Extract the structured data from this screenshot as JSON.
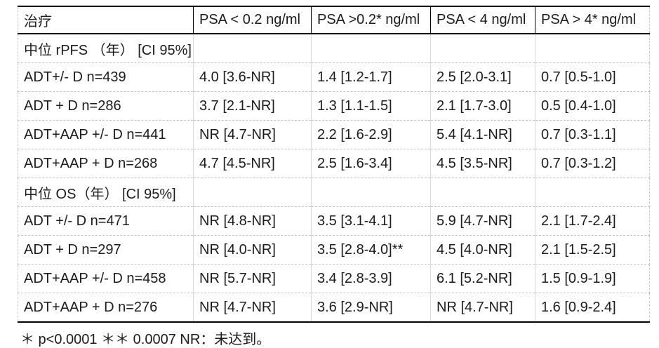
{
  "table": {
    "columns": [
      "治疗",
      "PSA < 0.2 ng/ml",
      "PSA >0.2* ng/ml",
      "PSA < 4 ng/ml",
      "PSA > 4* ng/ml"
    ],
    "rows": [
      {
        "type": "section",
        "label": "中位 rPFS （年） [CI 95%]",
        "cells": [
          "",
          "",
          "",
          ""
        ]
      },
      {
        "type": "data",
        "label": "ADT+/- D n=439",
        "cells": [
          "4.0 [3.6-NR]",
          "1.4 [1.2-1.7]",
          "2.5 [2.0-3.1]",
          "0.7 [0.5-1.0]"
        ]
      },
      {
        "type": "data",
        "label": "ADT + D n=286",
        "cells": [
          "3.7 [2.1-NR]",
          "1.3 [1.1-1.5]",
          "2.1 [1.7-3.0]",
          "0.5 [0.4-1.0]"
        ]
      },
      {
        "type": "data",
        "label": "ADT+AAP +/- D n=441",
        "cells": [
          "NR [4.7-NR]",
          "2.2 [1.6-2.9]",
          "5.4 [4.1-NR]",
          "0.7 [0.3-1.1]"
        ]
      },
      {
        "type": "data",
        "label": "ADT+AAP + D n=268",
        "cells": [
          "4.7 [4.5-NR]",
          "2.5 [1.6-3.4]",
          "4.5 [3.5-NR]",
          "0.7 [0.3-1.2]"
        ]
      },
      {
        "type": "section",
        "label": "中位 OS（年） [CI 95%]",
        "cells": [
          "",
          "",
          "",
          ""
        ]
      },
      {
        "type": "data",
        "label": "ADT +/- D n=471",
        "cells": [
          "NR [4.8-NR]",
          "3.5 [3.1-4.1]",
          "5.9 [4.7-NR]",
          "2.1 [1.7-2.4]"
        ]
      },
      {
        "type": "data",
        "label": "ADT + D n=297",
        "cells": [
          "NR [4.0-NR]",
          "3.5 [2.8-4.0]**",
          "4.5 [4.0-NR]",
          "2.1 [1.5-2.5]"
        ]
      },
      {
        "type": "data",
        "label": "ADT+AAP +/- D n=458",
        "cells": [
          "NR [5.7-NR]",
          "3.4 [2.8-3.9]",
          "6.1 [5.2-NR]",
          "1.5 [0.9-1.9]"
        ]
      },
      {
        "type": "data",
        "label": "ADT+AAP + D n=276",
        "cells": [
          "NR [4.7-NR]",
          "3.6 [2.9-NR]",
          "NR [4.7-NR]",
          "1.6 [0.9-2.4]"
        ]
      }
    ],
    "footnote": "＊ p<0.0001 ＊＊ 0.0007 NR：未达到。"
  },
  "colors": {
    "header_border": "#000000",
    "grid_line": "#c8c8c8",
    "text": "#1c1c1c",
    "background": "#ffffff"
  }
}
